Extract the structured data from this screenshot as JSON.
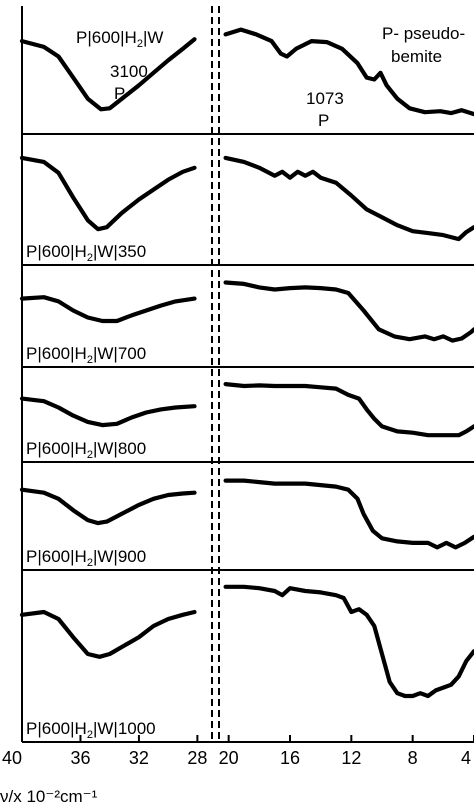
{
  "chart_data": {
    "type": "line",
    "xlabel": "ν/x 10⁻²cm⁻¹",
    "x_ticks_left": [
      "40",
      "36",
      "32",
      "28"
    ],
    "x_ticks_right": [
      "20",
      "16",
      "12",
      "8",
      "4"
    ],
    "xlim_left": [
      40,
      27
    ],
    "xlim_right": [
      20.5,
      4
    ],
    "series": [
      {
        "name": "P|600|H2|W",
        "label": {
          "pre": "P|600|H",
          "sub": "2",
          "post": "|W"
        },
        "annotations": [
          {
            "text": "3100",
            "x": 33.8,
            "where": "left"
          },
          {
            "text": "P",
            "x": 34.3,
            "where": "left"
          },
          {
            "text": "1073",
            "x": 10.7,
            "where": "right"
          },
          {
            "text": "P",
            "x": 10.7,
            "where": "right"
          },
          {
            "text": "P- pseudo-",
            "x": 7,
            "where": "right"
          },
          {
            "text": "bemite",
            "x": 7,
            "where": "right"
          }
        ],
        "left": [
          [
            40,
            0.22
          ],
          [
            38.5,
            0.28
          ],
          [
            37.5,
            0.38
          ],
          [
            36.5,
            0.6
          ],
          [
            35.5,
            0.82
          ],
          [
            34.6,
            0.93
          ],
          [
            34,
            0.92
          ],
          [
            33,
            0.8
          ],
          [
            32,
            0.68
          ],
          [
            31,
            0.55
          ],
          [
            30,
            0.42
          ],
          [
            29,
            0.3
          ],
          [
            28.2,
            0.2
          ]
        ],
        "right": [
          [
            20.2,
            0.15
          ],
          [
            19.2,
            0.1
          ],
          [
            18.2,
            0.15
          ],
          [
            17.2,
            0.22
          ],
          [
            16.6,
            0.35
          ],
          [
            16.2,
            0.38
          ],
          [
            15.6,
            0.3
          ],
          [
            14.6,
            0.22
          ],
          [
            13.6,
            0.23
          ],
          [
            12.6,
            0.3
          ],
          [
            11.6,
            0.45
          ],
          [
            11,
            0.6
          ],
          [
            10.5,
            0.62
          ],
          [
            10.1,
            0.55
          ],
          [
            9.7,
            0.68
          ],
          [
            9,
            0.82
          ],
          [
            8.2,
            0.92
          ],
          [
            7.2,
            0.96
          ],
          [
            6.2,
            0.95
          ],
          [
            5.5,
            0.97
          ],
          [
            4.8,
            0.94
          ],
          [
            4.2,
            0.97
          ],
          [
            4,
            0.98
          ]
        ]
      },
      {
        "name": "P|600|H2|W|350",
        "label": {
          "pre": "P|600|H",
          "sub": "2",
          "post": "|W|350"
        },
        "annotations": [],
        "left": [
          [
            40,
            0.1
          ],
          [
            38.5,
            0.14
          ],
          [
            37.5,
            0.25
          ],
          [
            36.5,
            0.5
          ],
          [
            35.5,
            0.73
          ],
          [
            34.8,
            0.82
          ],
          [
            34.2,
            0.8
          ],
          [
            33.2,
            0.66
          ],
          [
            32,
            0.52
          ],
          [
            31,
            0.42
          ],
          [
            30,
            0.32
          ],
          [
            29,
            0.24
          ],
          [
            28.2,
            0.2
          ]
        ],
        "right": [
          [
            20.2,
            0.1
          ],
          [
            19,
            0.14
          ],
          [
            18,
            0.2
          ],
          [
            17,
            0.28
          ],
          [
            16.5,
            0.24
          ],
          [
            16,
            0.3
          ],
          [
            15.5,
            0.24
          ],
          [
            15,
            0.28
          ],
          [
            14.5,
            0.24
          ],
          [
            14,
            0.3
          ],
          [
            13,
            0.35
          ],
          [
            12,
            0.48
          ],
          [
            11,
            0.62
          ],
          [
            10,
            0.7
          ],
          [
            9,
            0.78
          ],
          [
            8,
            0.84
          ],
          [
            7,
            0.86
          ],
          [
            6,
            0.88
          ],
          [
            5,
            0.92
          ],
          [
            4.5,
            0.85
          ],
          [
            4,
            0.8
          ]
        ]
      },
      {
        "name": "P|600|H2|W|700",
        "label": {
          "pre": "P|600|H",
          "sub": "2",
          "post": "|W|700"
        },
        "annotations": [],
        "left": [
          [
            40,
            0.28
          ],
          [
            38.5,
            0.26
          ],
          [
            37.5,
            0.32
          ],
          [
            36.5,
            0.45
          ],
          [
            35.5,
            0.55
          ],
          [
            34.5,
            0.6
          ],
          [
            33.5,
            0.6
          ],
          [
            32.5,
            0.52
          ],
          [
            31.5,
            0.45
          ],
          [
            30.5,
            0.38
          ],
          [
            29.5,
            0.32
          ],
          [
            28.2,
            0.28
          ]
        ],
        "right": [
          [
            20.2,
            0.05
          ],
          [
            19,
            0.07
          ],
          [
            18,
            0.12
          ],
          [
            17,
            0.15
          ],
          [
            16,
            0.13
          ],
          [
            15,
            0.12
          ],
          [
            14,
            0.13
          ],
          [
            13,
            0.15
          ],
          [
            12.2,
            0.2
          ],
          [
            11.2,
            0.45
          ],
          [
            10.2,
            0.72
          ],
          [
            9.2,
            0.82
          ],
          [
            8.2,
            0.86
          ],
          [
            7.2,
            0.82
          ],
          [
            6.6,
            0.86
          ],
          [
            6,
            0.82
          ],
          [
            5.4,
            0.88
          ],
          [
            4.8,
            0.85
          ],
          [
            4.2,
            0.76
          ],
          [
            4,
            0.72
          ]
        ]
      },
      {
        "name": "P|600|H2|W|800",
        "label": {
          "pre": "P|600|H",
          "sub": "2",
          "post": "|W|800"
        },
        "annotations": [],
        "left": [
          [
            40,
            0.28
          ],
          [
            38.5,
            0.32
          ],
          [
            37.5,
            0.42
          ],
          [
            36.5,
            0.55
          ],
          [
            35.5,
            0.65
          ],
          [
            34.5,
            0.7
          ],
          [
            33.5,
            0.68
          ],
          [
            32.5,
            0.58
          ],
          [
            31.5,
            0.5
          ],
          [
            30.5,
            0.45
          ],
          [
            29.5,
            0.42
          ],
          [
            28.2,
            0.4
          ]
        ],
        "right": [
          [
            20.2,
            0.05
          ],
          [
            19,
            0.08
          ],
          [
            18,
            0.07
          ],
          [
            17,
            0.08
          ],
          [
            16,
            0.08
          ],
          [
            15,
            0.08
          ],
          [
            14,
            0.1
          ],
          [
            13,
            0.12
          ],
          [
            12.2,
            0.22
          ],
          [
            11.5,
            0.28
          ],
          [
            11,
            0.45
          ],
          [
            10.5,
            0.6
          ],
          [
            10,
            0.72
          ],
          [
            9,
            0.8
          ],
          [
            8,
            0.82
          ],
          [
            7,
            0.86
          ],
          [
            6,
            0.86
          ],
          [
            5,
            0.86
          ],
          [
            4.5,
            0.8
          ],
          [
            4,
            0.72
          ]
        ]
      },
      {
        "name": "P|600|H2|W|900",
        "label": {
          "pre": "P|600|H",
          "sub": "2",
          "post": "|W|900"
        },
        "annotations": [],
        "left": [
          [
            40,
            0.18
          ],
          [
            38.5,
            0.22
          ],
          [
            37.5,
            0.3
          ],
          [
            36.5,
            0.45
          ],
          [
            35.5,
            0.58
          ],
          [
            34.8,
            0.62
          ],
          [
            34.2,
            0.6
          ],
          [
            33.2,
            0.5
          ],
          [
            32,
            0.38
          ],
          [
            31,
            0.3
          ],
          [
            30,
            0.25
          ],
          [
            29,
            0.23
          ],
          [
            28.2,
            0.22
          ]
        ],
        "right": [
          [
            20.2,
            0.06
          ],
          [
            19,
            0.06
          ],
          [
            18,
            0.08
          ],
          [
            17,
            0.1
          ],
          [
            16,
            0.1
          ],
          [
            15,
            0.1
          ],
          [
            14,
            0.12
          ],
          [
            13,
            0.14
          ],
          [
            12.2,
            0.18
          ],
          [
            11.6,
            0.3
          ],
          [
            11.2,
            0.5
          ],
          [
            10.6,
            0.72
          ],
          [
            10,
            0.82
          ],
          [
            9,
            0.86
          ],
          [
            8,
            0.88
          ],
          [
            7,
            0.88
          ],
          [
            6.4,
            0.94
          ],
          [
            5.8,
            0.88
          ],
          [
            5.2,
            0.94
          ],
          [
            4.6,
            0.88
          ],
          [
            4,
            0.8
          ]
        ]
      },
      {
        "name": "P|600|H2|W|1000",
        "label": {
          "pre": "P|600|H",
          "sub": "2",
          "post": "|W|1000"
        },
        "annotations": [],
        "left": [
          [
            40,
            0.22
          ],
          [
            38.5,
            0.2
          ],
          [
            37.5,
            0.25
          ],
          [
            36.5,
            0.38
          ],
          [
            35.5,
            0.5
          ],
          [
            34.7,
            0.52
          ],
          [
            34,
            0.5
          ],
          [
            33,
            0.44
          ],
          [
            32,
            0.38
          ],
          [
            31,
            0.3
          ],
          [
            30,
            0.25
          ],
          [
            29,
            0.22
          ],
          [
            28.2,
            0.2
          ]
        ],
        "right": [
          [
            20.2,
            0.02
          ],
          [
            19,
            0.02
          ],
          [
            18,
            0.03
          ],
          [
            17,
            0.05
          ],
          [
            16.5,
            0.08
          ],
          [
            16,
            0.03
          ],
          [
            15,
            0.05
          ],
          [
            14,
            0.06
          ],
          [
            13,
            0.08
          ],
          [
            12.5,
            0.1
          ],
          [
            12,
            0.2
          ],
          [
            11.5,
            0.18
          ],
          [
            11,
            0.22
          ],
          [
            10.5,
            0.3
          ],
          [
            10,
            0.5
          ],
          [
            9.5,
            0.7
          ],
          [
            9,
            0.78
          ],
          [
            8.5,
            0.8
          ],
          [
            8,
            0.8
          ],
          [
            7.5,
            0.78
          ],
          [
            7,
            0.8
          ],
          [
            6.5,
            0.76
          ],
          [
            6,
            0.74
          ],
          [
            5.5,
            0.72
          ],
          [
            5,
            0.66
          ],
          [
            4.5,
            0.55
          ],
          [
            4,
            0.48
          ]
        ]
      }
    ]
  }
}
